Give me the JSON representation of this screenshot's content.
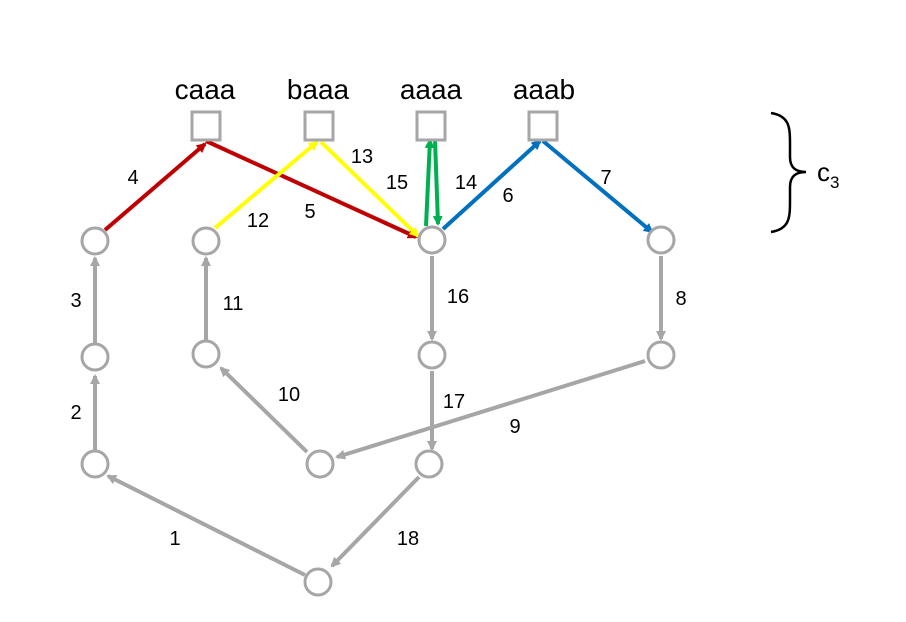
{
  "top_labels": {
    "caaa": "caaa",
    "baaa": "baaa",
    "aaaa": "aaaa",
    "aaab": "aaab"
  },
  "edges": [
    {
      "id": "e1",
      "label": "1",
      "color": "#a6a6a6"
    },
    {
      "id": "e2",
      "label": "2",
      "color": "#a6a6a6"
    },
    {
      "id": "e3",
      "label": "3",
      "color": "#a6a6a6"
    },
    {
      "id": "e4",
      "label": "4",
      "color": "#c00000"
    },
    {
      "id": "e5",
      "label": "5",
      "color": "#c00000"
    },
    {
      "id": "e6",
      "label": "6",
      "color": "#0070c0"
    },
    {
      "id": "e7",
      "label": "7",
      "color": "#0070c0"
    },
    {
      "id": "e8",
      "label": "8",
      "color": "#a6a6a6"
    },
    {
      "id": "e9",
      "label": "9",
      "color": "#a6a6a6"
    },
    {
      "id": "e10",
      "label": "10",
      "color": "#a6a6a6"
    },
    {
      "id": "e11",
      "label": "11",
      "color": "#a6a6a6"
    },
    {
      "id": "e12",
      "label": "12",
      "color": "#ffff00"
    },
    {
      "id": "e13",
      "label": "13",
      "color": "#ffff00"
    },
    {
      "id": "e14",
      "label": "14",
      "color": "#00b050"
    },
    {
      "id": "e15",
      "label": "15",
      "color": "#00b050"
    },
    {
      "id": "e16",
      "label": "16",
      "color": "#a6a6a6"
    },
    {
      "id": "e17",
      "label": "17",
      "color": "#a6a6a6"
    },
    {
      "id": "e18",
      "label": "18",
      "color": "#a6a6a6"
    }
  ],
  "brace": {
    "label": "c",
    "subscript": "3"
  }
}
